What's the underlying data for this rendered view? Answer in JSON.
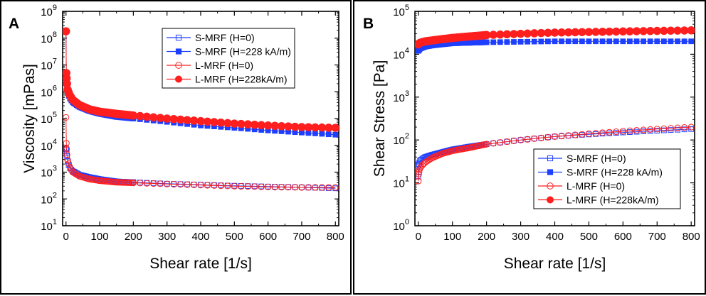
{
  "chart_data": [
    {
      "id": "A",
      "type": "scatter",
      "panel_label": "A",
      "xlabel": "Shear rate [1/s]",
      "ylabel": "Viscosity [mPas]",
      "yscale": "log",
      "xlim": [
        -10,
        810
      ],
      "ylim_exp": [
        1,
        9
      ],
      "xticks": [
        "0",
        "100",
        "200",
        "300",
        "400",
        "500",
        "600",
        "700",
        "800"
      ],
      "yticks": [
        "10",
        "10",
        "10",
        "10",
        "10",
        "10",
        "10",
        "10",
        "10"
      ],
      "ytick_exps": [
        "1",
        "2",
        "3",
        "4",
        "5",
        "6",
        "7",
        "8",
        "9"
      ],
      "legend": [
        "S-MRF (H=0)",
        "S-MRF (H=228 kA/m)",
        "L-MRF (H=0)",
        "L-MRF (H=228kA/m)"
      ],
      "legend_position": "top-right",
      "series": [
        {
          "name": "S-MRF (H=0)",
          "color": "#1f3fff",
          "marker": "square-open",
          "points": [
            [
              0,
              8000
            ],
            [
              1,
              7000
            ],
            [
              3,
              4000
            ],
            [
              5,
              2500
            ],
            [
              10,
              1500
            ],
            [
              20,
              1100
            ],
            [
              40,
              800
            ],
            [
              70,
              650
            ],
            [
              100,
              550
            ],
            [
              150,
              450
            ],
            [
              200,
              420
            ],
            [
              300,
              370
            ],
            [
              400,
              340
            ],
            [
              500,
              310
            ],
            [
              600,
              290
            ],
            [
              700,
              270
            ],
            [
              800,
              250
            ]
          ]
        },
        {
          "name": "S-MRF (H=228 kA/m)",
          "color": "#1f3fff",
          "marker": "square-filled",
          "points": [
            [
              0,
              180000000
            ],
            [
              1,
              4000000
            ],
            [
              3,
              1500000
            ],
            [
              5,
              900000
            ],
            [
              10,
              600000
            ],
            [
              20,
              400000
            ],
            [
              40,
              270000
            ],
            [
              70,
              190000
            ],
            [
              100,
              150000
            ],
            [
              150,
              115000
            ],
            [
              200,
              100000
            ],
            [
              300,
              75000
            ],
            [
              400,
              55000
            ],
            [
              500,
              45000
            ],
            [
              600,
              36000
            ],
            [
              700,
              30000
            ],
            [
              800,
              25000
            ]
          ]
        },
        {
          "name": "L-MRF (H=0)",
          "color": "#ff1f1f",
          "marker": "circle-open",
          "points": [
            [
              0,
              110000
            ],
            [
              1,
              12000
            ],
            [
              3,
              4500
            ],
            [
              5,
              2800
            ],
            [
              10,
              1700
            ],
            [
              20,
              1000
            ],
            [
              40,
              700
            ],
            [
              70,
              550
            ],
            [
              100,
              480
            ],
            [
              150,
              420
            ],
            [
              200,
              400
            ],
            [
              300,
              360
            ],
            [
              400,
              330
            ],
            [
              500,
              300
            ],
            [
              600,
              280
            ],
            [
              700,
              270
            ],
            [
              800,
              270
            ]
          ]
        },
        {
          "name": "L-MRF (H=228kA/m)",
          "color": "#ff1f1f",
          "marker": "circle-filled",
          "points": [
            [
              0,
              180000000
            ],
            [
              1,
              5000000
            ],
            [
              3,
              2000000
            ],
            [
              5,
              1200000
            ],
            [
              10,
              800000
            ],
            [
              20,
              500000
            ],
            [
              40,
              320000
            ],
            [
              70,
              220000
            ],
            [
              100,
              180000
            ],
            [
              150,
              150000
            ],
            [
              200,
              130000
            ],
            [
              300,
              100000
            ],
            [
              400,
              80000
            ],
            [
              500,
              65000
            ],
            [
              600,
              55000
            ],
            [
              700,
              48000
            ],
            [
              800,
              45000
            ]
          ]
        }
      ]
    },
    {
      "id": "B",
      "type": "scatter",
      "panel_label": "B",
      "xlabel": "Shear rate [1/s]",
      "ylabel": "Shear Stress [Pa]",
      "yscale": "log",
      "xlim": [
        -10,
        810
      ],
      "ylim_exp": [
        0,
        5
      ],
      "xticks": [
        "0",
        "100",
        "200",
        "300",
        "400",
        "500",
        "600",
        "700",
        "800"
      ],
      "yticks": [
        "10",
        "10",
        "10",
        "10",
        "10",
        "10"
      ],
      "ytick_exps": [
        "0",
        "1",
        "2",
        "3",
        "4",
        "5"
      ],
      "legend": [
        "S-MRF (H=0)",
        "S-MRF (H=228 kA/m)",
        "L-MRF (H=0)",
        "L-MRF (H=228kA/m)"
      ],
      "legend_position": "bottom-right",
      "series": [
        {
          "name": "S-MRF (H=0)",
          "color": "#1f3fff",
          "marker": "square-open",
          "points": [
            [
              0,
              14
            ],
            [
              1,
              25
            ],
            [
              3,
              30
            ],
            [
              5,
              33
            ],
            [
              10,
              36
            ],
            [
              20,
              40
            ],
            [
              40,
              45
            ],
            [
              70,
              52
            ],
            [
              100,
              60
            ],
            [
              150,
              70
            ],
            [
              200,
              80
            ],
            [
              300,
              100
            ],
            [
              400,
              120
            ],
            [
              500,
              135
            ],
            [
              600,
              150
            ],
            [
              700,
              165
            ],
            [
              800,
              180
            ]
          ]
        },
        {
          "name": "S-MRF (H=228 kA/m)",
          "color": "#1f3fff",
          "marker": "square-filled",
          "points": [
            [
              0,
              12000
            ],
            [
              1,
              12500
            ],
            [
              3,
              13000
            ],
            [
              5,
              13500
            ],
            [
              10,
              14000
            ],
            [
              20,
              15000
            ],
            [
              40,
              16000
            ],
            [
              70,
              17000
            ],
            [
              100,
              18000
            ],
            [
              150,
              18500
            ],
            [
              200,
              19000
            ],
            [
              300,
              19500
            ],
            [
              400,
              20000
            ],
            [
              500,
              20000
            ],
            [
              600,
              20000
            ],
            [
              700,
              20000
            ],
            [
              800,
              20000
            ]
          ]
        },
        {
          "name": "L-MRF (H=0)",
          "color": "#ff1f1f",
          "marker": "circle-open",
          "points": [
            [
              0,
              11
            ],
            [
              1,
              16
            ],
            [
              3,
              20
            ],
            [
              5,
              22
            ],
            [
              10,
              25
            ],
            [
              20,
              30
            ],
            [
              40,
              38
            ],
            [
              70,
              48
            ],
            [
              100,
              56
            ],
            [
              150,
              66
            ],
            [
              200,
              80
            ],
            [
              300,
              100
            ],
            [
              400,
              120
            ],
            [
              500,
              140
            ],
            [
              600,
              160
            ],
            [
              700,
              180
            ],
            [
              800,
              200
            ]
          ]
        },
        {
          "name": "L-MRF (H=228kA/m)",
          "color": "#ff1f1f",
          "marker": "circle-filled",
          "points": [
            [
              0,
              17000
            ],
            [
              1,
              17500
            ],
            [
              3,
              18000
            ],
            [
              5,
              18500
            ],
            [
              10,
              19000
            ],
            [
              20,
              20000
            ],
            [
              40,
              21000
            ],
            [
              70,
              22500
            ],
            [
              100,
              24000
            ],
            [
              150,
              26000
            ],
            [
              200,
              28000
            ],
            [
              300,
              30000
            ],
            [
              400,
              32000
            ],
            [
              500,
              33000
            ],
            [
              600,
              34000
            ],
            [
              700,
              35000
            ],
            [
              800,
              36000
            ]
          ]
        }
      ]
    }
  ]
}
